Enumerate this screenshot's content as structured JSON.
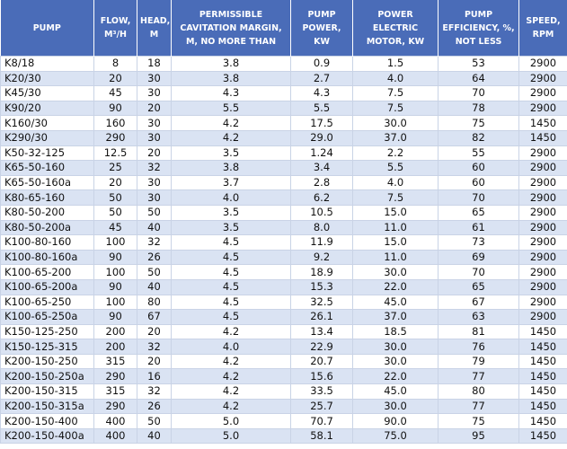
{
  "table": {
    "headers": [
      "PUMP",
      "FLOW, M³/H",
      "HEAD, M",
      "PERMISSIBLE CAVITATION MARGIN, M, NO MORE THAN",
      "PUMP POWER, KW",
      "POWER ELECTRIC MOTOR, KW",
      "PUMP EFFICIENCY, %, NOT LESS",
      "SPEED, RPM"
    ],
    "rows": [
      [
        "K8/18",
        "8",
        "18",
        "3.8",
        "0.9",
        "1.5",
        "53",
        "2900"
      ],
      [
        "K20/30",
        "20",
        "30",
        "3.8",
        "2.7",
        "4.0",
        "64",
        "2900"
      ],
      [
        "K45/30",
        "45",
        "30",
        "4.3",
        "4.3",
        "7.5",
        "70",
        "2900"
      ],
      [
        "K90/20",
        "90",
        "20",
        "5.5",
        "5.5",
        "7.5",
        "78",
        "2900"
      ],
      [
        "K160/30",
        "160",
        "30",
        "4.2",
        "17.5",
        "30.0",
        "75",
        "1450"
      ],
      [
        "K290/30",
        "290",
        "30",
        "4.2",
        "29.0",
        "37.0",
        "82",
        "1450"
      ],
      [
        "K50-32-125",
        "12.5",
        "20",
        "3.5",
        "1.24",
        "2.2",
        "55",
        "2900"
      ],
      [
        "K65-50-160",
        "25",
        "32",
        "3.8",
        "3.4",
        "5.5",
        "60",
        "2900"
      ],
      [
        "K65-50-160a",
        "20",
        "30",
        "3.7",
        "2.8",
        "4.0",
        "60",
        "2900"
      ],
      [
        "K80-65-160",
        "50",
        "30",
        "4.0",
        "6.2",
        "7.5",
        "70",
        "2900"
      ],
      [
        "K80-50-200",
        "50",
        "50",
        "3.5",
        "10.5",
        "15.0",
        "65",
        "2900"
      ],
      [
        "K80-50-200a",
        "45",
        "40",
        "3.5",
        "8.0",
        "11.0",
        "61",
        "2900"
      ],
      [
        "K100-80-160",
        "100",
        "32",
        "4.5",
        "11.9",
        "15.0",
        "73",
        "2900"
      ],
      [
        "K100-80-160a",
        "90",
        "26",
        "4.5",
        "9.2",
        "11.0",
        "69",
        "2900"
      ],
      [
        "K100-65-200",
        "100",
        "50",
        "4.5",
        "18.9",
        "30.0",
        "70",
        "2900"
      ],
      [
        "K100-65-200a",
        "90",
        "40",
        "4.5",
        "15.3",
        "22.0",
        "65",
        "2900"
      ],
      [
        "K100-65-250",
        "100",
        "80",
        "4.5",
        "32.5",
        "45.0",
        "67",
        "2900"
      ],
      [
        "K100-65-250a",
        "90",
        "67",
        "4.5",
        "26.1",
        "37.0",
        "63",
        "2900"
      ],
      [
        "K150-125-250",
        "200",
        "20",
        "4.2",
        "13.4",
        "18.5",
        "81",
        "1450"
      ],
      [
        "K150-125-315",
        "200",
        "32",
        "4.0",
        "22.9",
        "30.0",
        "76",
        "1450"
      ],
      [
        "K200-150-250",
        "315",
        "20",
        "4.2",
        "20.7",
        "30.0",
        "79",
        "1450"
      ],
      [
        "K200-150-250a",
        "290",
        "16",
        "4.2",
        "15.6",
        "22.0",
        "77",
        "1450"
      ],
      [
        "K200-150-315",
        "315",
        "32",
        "4.2",
        "33.5",
        "45.0",
        "80",
        "1450"
      ],
      [
        "K200-150-315a",
        "290",
        "26",
        "4.2",
        "25.7",
        "30.0",
        "77",
        "1450"
      ],
      [
        "K200-150-400",
        "400",
        "50",
        "5.0",
        "70.7",
        "90.0",
        "75",
        "1450"
      ],
      [
        "K200-150-400a",
        "400",
        "40",
        "5.0",
        "58.1",
        "75.0",
        "95",
        "1450"
      ]
    ]
  }
}
